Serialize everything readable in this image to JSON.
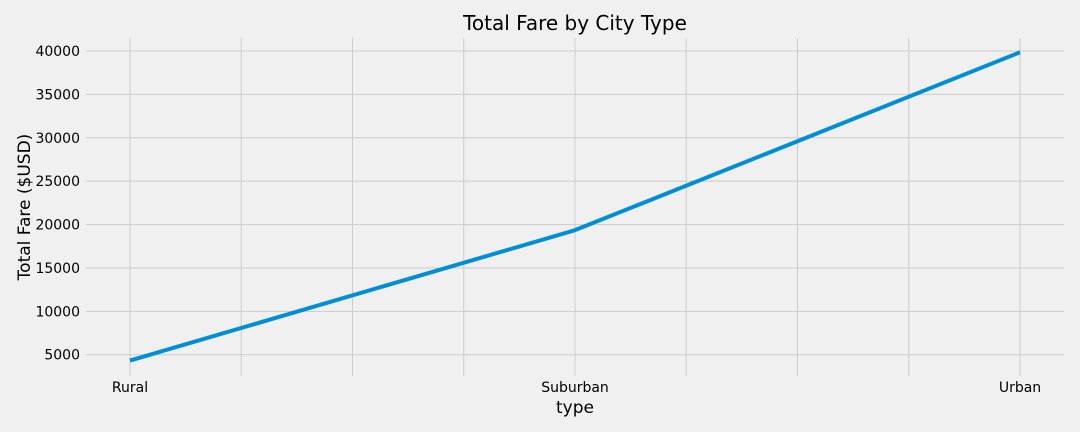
{
  "chart_data": {
    "type": "line",
    "title": "Total Fare by City Type",
    "xlabel": "type",
    "ylabel": "Total Fare ($USD)",
    "categories": [
      "Rural",
      "Suburban",
      "Urban"
    ],
    "series": [
      {
        "values": [
          4327.93,
          19356.33,
          39854.38
        ],
        "color": "#008fd5"
      }
    ],
    "ylim": [
      2550,
      41500
    ],
    "yticks": [
      "5000",
      "10000",
      "15000",
      "20000",
      "25000",
      "30000",
      "35000",
      "40000"
    ],
    "grid": true,
    "legend": "none",
    "background_color": "#f0f0f0",
    "grid_color": "#cbcbcb"
  }
}
